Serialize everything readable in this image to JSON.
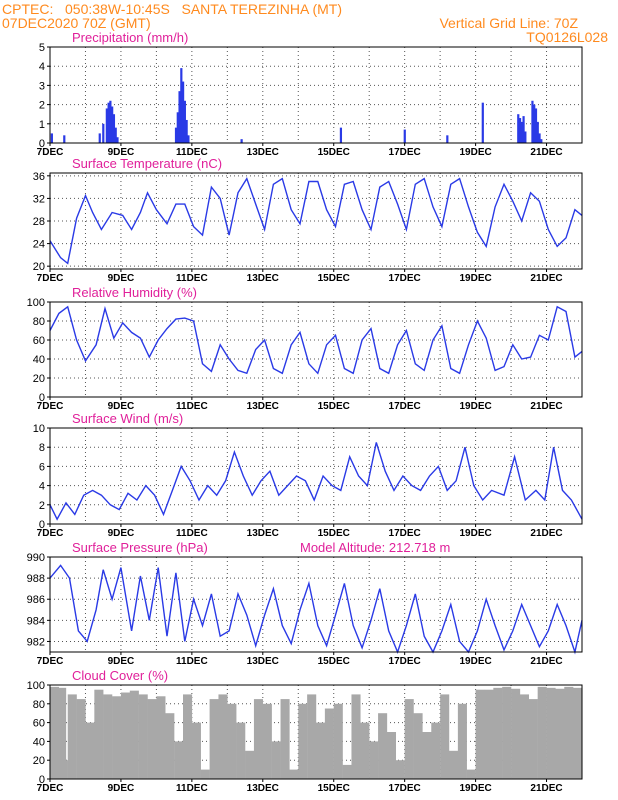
{
  "header": {
    "line1": "CPTEC:   050:38W-10:45S   SANTA TEREZINHA (MT)",
    "line2": "07DEC2020 70Z (GMT)",
    "grid_note": "Vertical Grid Line: 70Z",
    "model_id": "TQ0126L028"
  },
  "colors": {
    "header": "#ff8a1e",
    "title": "#e0209a",
    "series": "#2a3ae6",
    "cloud": "#a8a8a8",
    "grid": "#555555"
  },
  "chart_data": [
    {
      "id": "precip",
      "type": "bar",
      "title": "Precipitation (mm/h)",
      "annotation": "",
      "ylim": [
        0,
        5
      ],
      "yticks": [
        0,
        1,
        2,
        3,
        4,
        5
      ],
      "xlim": [
        0,
        15
      ],
      "xtick_labels": [
        "7DEC",
        "9DEC",
        "11DEC",
        "13DEC",
        "15DEC",
        "17DEC",
        "19DEC",
        "21DEC"
      ],
      "x": [
        0.05,
        0.4,
        1.4,
        1.5,
        1.6,
        1.65,
        1.7,
        1.75,
        1.8,
        1.85,
        1.9,
        3.55,
        3.6,
        3.65,
        3.7,
        3.75,
        3.8,
        3.85,
        3.9,
        5.4,
        8.2,
        10.0,
        11.2,
        12.2,
        13.2,
        13.25,
        13.3,
        13.35,
        13.4,
        13.6,
        13.65,
        13.7,
        13.75,
        13.8,
        13.85
      ],
      "values": [
        0.5,
        0.4,
        0.5,
        1.0,
        1.8,
        2.1,
        2.2,
        1.9,
        1.5,
        0.8,
        0.3,
        0.8,
        1.6,
        2.7,
        3.9,
        3.2,
        2.2,
        1.2,
        0.4,
        0.2,
        0.8,
        0.7,
        0.4,
        2.1,
        1.5,
        1.3,
        1.1,
        1.4,
        0.6,
        2.2,
        2.0,
        1.8,
        1.1,
        0.5,
        0.2
      ]
    },
    {
      "id": "temp",
      "type": "line",
      "title": "Surface Temperature (nC)",
      "annotation": "",
      "ylim": [
        19.5,
        36.5
      ],
      "yticks": [
        20,
        24,
        28,
        32,
        36
      ],
      "xlim": [
        0,
        15
      ],
      "xtick_labels": [
        "7DEC",
        "9DEC",
        "11DEC",
        "13DEC",
        "15DEC",
        "17DEC",
        "19DEC",
        "21DEC"
      ],
      "x": [
        0.0,
        0.3,
        0.5,
        0.75,
        1.0,
        1.2,
        1.45,
        1.75,
        2.05,
        2.3,
        2.55,
        2.75,
        3.0,
        3.3,
        3.55,
        3.8,
        4.05,
        4.3,
        4.55,
        4.8,
        5.05,
        5.3,
        5.55,
        5.8,
        6.05,
        6.3,
        6.55,
        6.8,
        7.05,
        7.3,
        7.55,
        7.8,
        8.05,
        8.3,
        8.55,
        8.8,
        9.05,
        9.3,
        9.55,
        9.8,
        10.05,
        10.3,
        10.55,
        10.8,
        11.05,
        11.3,
        11.55,
        11.8,
        12.05,
        12.3,
        12.55,
        12.8,
        13.05,
        13.3,
        13.55,
        13.8,
        14.05,
        14.3,
        14.55,
        14.8,
        15.0
      ],
      "values": [
        24.5,
        21.5,
        20.5,
        28.5,
        32.5,
        29.5,
        26.5,
        29.5,
        29.0,
        26.5,
        29.5,
        33.0,
        30.0,
        27.5,
        31.0,
        31.0,
        27.0,
        25.5,
        34.0,
        32.0,
        25.5,
        33.0,
        35.5,
        31.0,
        26.5,
        34.5,
        35.5,
        30.0,
        27.5,
        35.0,
        35.0,
        30.0,
        27.0,
        34.5,
        35.0,
        30.0,
        26.5,
        34.0,
        35.0,
        31.0,
        26.5,
        34.5,
        35.5,
        30.5,
        27.0,
        34.5,
        35.5,
        30.5,
        26.0,
        23.5,
        30.5,
        34.5,
        31.5,
        28.0,
        33.0,
        31.5,
        26.5,
        23.5,
        25.0,
        30.0,
        29.0
      ]
    },
    {
      "id": "rh",
      "type": "line",
      "title": "Relative Humidity (%)",
      "annotation": "",
      "ylim": [
        0,
        100
      ],
      "yticks": [
        0,
        20,
        40,
        60,
        80,
        100
      ],
      "xlim": [
        0,
        15
      ],
      "xtick_labels": [
        "7DEC",
        "9DEC",
        "11DEC",
        "13DEC",
        "15DEC",
        "17DEC",
        "19DEC",
        "21DEC"
      ],
      "x": [
        0.0,
        0.25,
        0.5,
        0.75,
        1.0,
        1.3,
        1.55,
        1.8,
        2.05,
        2.3,
        2.55,
        2.8,
        3.05,
        3.3,
        3.55,
        3.8,
        4.05,
        4.3,
        4.55,
        4.8,
        5.05,
        5.3,
        5.55,
        5.8,
        6.05,
        6.3,
        6.55,
        6.8,
        7.05,
        7.3,
        7.55,
        7.8,
        8.05,
        8.3,
        8.55,
        8.8,
        9.05,
        9.3,
        9.55,
        9.8,
        10.05,
        10.3,
        10.55,
        10.8,
        11.05,
        11.3,
        11.55,
        11.8,
        12.05,
        12.3,
        12.55,
        12.8,
        13.05,
        13.3,
        13.55,
        13.8,
        14.05,
        14.3,
        14.55,
        14.8,
        15.0
      ],
      "values": [
        70,
        88,
        95,
        60,
        38,
        55,
        93,
        62,
        78,
        68,
        62,
        42,
        60,
        72,
        82,
        83,
        80,
        35,
        27,
        55,
        40,
        28,
        25,
        50,
        60,
        30,
        25,
        55,
        68,
        35,
        25,
        55,
        65,
        30,
        25,
        60,
        72,
        30,
        25,
        55,
        70,
        35,
        28,
        60,
        75,
        30,
        25,
        55,
        80,
        62,
        28,
        32,
        55,
        40,
        42,
        65,
        60,
        95,
        90,
        42,
        48
      ]
    },
    {
      "id": "wind",
      "type": "line",
      "title": "Surface Wind (m/s)",
      "annotation": "",
      "ylim": [
        0,
        10
      ],
      "yticks": [
        0,
        2,
        4,
        6,
        8,
        10
      ],
      "xlim": [
        0,
        15
      ],
      "xtick_labels": [
        "7DEC",
        "9DEC",
        "11DEC",
        "13DEC",
        "15DEC",
        "17DEC",
        "19DEC",
        "21DEC"
      ],
      "x": [
        0.0,
        0.2,
        0.45,
        0.7,
        0.95,
        1.2,
        1.45,
        1.7,
        1.95,
        2.2,
        2.45,
        2.7,
        2.95,
        3.2,
        3.45,
        3.7,
        3.95,
        4.2,
        4.45,
        4.7,
        4.95,
        5.2,
        5.45,
        5.7,
        5.95,
        6.2,
        6.45,
        6.7,
        6.95,
        7.2,
        7.45,
        7.7,
        7.95,
        8.2,
        8.45,
        8.7,
        8.95,
        9.2,
        9.45,
        9.7,
        9.95,
        10.2,
        10.45,
        10.7,
        10.95,
        11.2,
        11.45,
        11.7,
        11.95,
        12.2,
        12.45,
        12.8,
        13.1,
        13.4,
        13.7,
        13.95,
        14.2,
        14.45,
        14.7,
        15.0
      ],
      "values": [
        2.0,
        0.5,
        2.2,
        1.0,
        3.0,
        3.5,
        3.0,
        2.0,
        1.5,
        3.2,
        2.5,
        4.0,
        3.0,
        1.0,
        3.5,
        6.0,
        4.5,
        2.5,
        4.0,
        3.0,
        4.5,
        7.5,
        5.0,
        3.0,
        4.5,
        5.5,
        3.0,
        4.0,
        5.0,
        4.5,
        2.5,
        5.0,
        4.0,
        3.5,
        7.0,
        5.0,
        4.0,
        8.5,
        5.5,
        3.5,
        5.0,
        4.0,
        3.5,
        5.0,
        6.0,
        3.5,
        4.5,
        8.0,
        4.0,
        2.5,
        3.5,
        3.0,
        7.0,
        2.5,
        3.5,
        2.5,
        8.0,
        3.5,
        2.5,
        0.5
      ]
    },
    {
      "id": "press",
      "type": "line",
      "title": "Surface Pressure (hPa)",
      "annotation": "Model Altitude: 212.718  m",
      "ylim": [
        981,
        990
      ],
      "yticks": [
        982,
        984,
        986,
        988,
        990
      ],
      "xlim": [
        0,
        15
      ],
      "xtick_labels": [
        "7DEC",
        "9DEC",
        "11DEC",
        "13DEC",
        "15DEC",
        "17DEC",
        "19DEC",
        "21DEC"
      ],
      "x": [
        0.0,
        0.3,
        0.55,
        0.8,
        1.05,
        1.3,
        1.5,
        1.75,
        2.0,
        2.3,
        2.55,
        2.8,
        3.05,
        3.3,
        3.55,
        3.8,
        4.05,
        4.3,
        4.55,
        4.8,
        5.05,
        5.3,
        5.55,
        5.8,
        6.05,
        6.3,
        6.55,
        6.8,
        7.05,
        7.3,
        7.55,
        7.8,
        8.05,
        8.3,
        8.55,
        8.8,
        9.05,
        9.3,
        9.55,
        9.8,
        10.05,
        10.3,
        10.55,
        10.8,
        11.05,
        11.3,
        11.55,
        11.8,
        12.05,
        12.3,
        12.55,
        12.8,
        13.05,
        13.3,
        13.55,
        13.8,
        14.05,
        14.3,
        14.55,
        14.8,
        15.0
      ],
      "values": [
        988.0,
        989.2,
        988.0,
        983.0,
        982.0,
        985.0,
        988.8,
        986.0,
        989.0,
        983.0,
        988.2,
        984.0,
        989.0,
        982.5,
        988.5,
        982.0,
        986.0,
        983.5,
        986.5,
        982.5,
        983.0,
        986.5,
        984.5,
        981.6,
        984.5,
        987.0,
        983.5,
        981.8,
        985.0,
        987.5,
        983.5,
        981.6,
        984.5,
        987.5,
        983.5,
        981.4,
        984.0,
        987.0,
        983.0,
        981.0,
        983.5,
        986.5,
        982.5,
        981.0,
        983.0,
        985.5,
        982.0,
        981.0,
        983.0,
        986.0,
        983.5,
        981.2,
        983.0,
        985.5,
        983.5,
        981.5,
        983.0,
        985.5,
        983.5,
        981.0,
        984.0
      ]
    },
    {
      "id": "cloud",
      "type": "area",
      "title": "Cloud Cover (%)",
      "annotation": "",
      "ylim": [
        0,
        100
      ],
      "yticks": [
        0,
        20,
        40,
        60,
        80,
        100
      ],
      "xlim": [
        0,
        15
      ],
      "xtick_labels": [
        "7DEC",
        "9DEC",
        "11DEC",
        "13DEC",
        "15DEC",
        "17DEC",
        "19DEC",
        "21DEC"
      ],
      "x": [
        0.0,
        0.2,
        0.25,
        0.5,
        0.75,
        1.0,
        1.25,
        1.5,
        1.75,
        2.0,
        2.25,
        2.5,
        2.75,
        3.0,
        3.25,
        3.5,
        3.75,
        4.0,
        4.25,
        4.5,
        4.75,
        5.0,
        5.25,
        5.5,
        5.75,
        6.0,
        6.25,
        6.5,
        6.75,
        7.0,
        7.25,
        7.5,
        7.75,
        8.0,
        8.25,
        8.5,
        8.75,
        9.0,
        9.25,
        9.5,
        9.75,
        10.0,
        10.25,
        10.5,
        10.75,
        11.0,
        11.25,
        11.5,
        11.75,
        12.0,
        12.25,
        12.5,
        12.75,
        13.0,
        13.25,
        13.5,
        13.75,
        14.0,
        14.25,
        14.5,
        14.75,
        15.0
      ],
      "values": [
        98,
        97,
        20,
        90,
        85,
        60,
        95,
        90,
        88,
        92,
        94,
        90,
        85,
        88,
        70,
        40,
        90,
        60,
        10,
        85,
        90,
        80,
        60,
        30,
        85,
        80,
        40,
        85,
        10,
        80,
        90,
        60,
        75,
        80,
        15,
        90,
        60,
        40,
        70,
        50,
        20,
        85,
        70,
        50,
        60,
        90,
        30,
        80,
        10,
        95,
        95,
        97,
        98,
        96,
        90,
        85,
        98,
        97,
        96,
        98,
        97,
        96
      ]
    }
  ]
}
